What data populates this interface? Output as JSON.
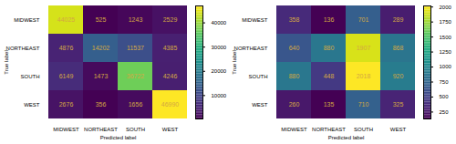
{
  "chart_data": [
    {
      "type": "heatmap",
      "categories": [
        "MIDWEST",
        "NORTHEAST",
        "SOUTH",
        "WEST"
      ],
      "values": [
        [
          44025,
          525,
          1243,
          2529
        ],
        [
          4876,
          14202,
          11537,
          4385
        ],
        [
          6149,
          1473,
          36722,
          4246
        ],
        [
          2676,
          356,
          1656,
          46990
        ]
      ],
      "xlabel": "Predicted label",
      "ylabel": "True label",
      "color": "viridis",
      "text_color": "#d4a843",
      "data_labels": true,
      "colorbar_range": [
        356,
        46990
      ],
      "colorbar_ticks": [
        10000,
        20000,
        30000,
        40000
      ]
    },
    {
      "type": "heatmap",
      "categories": [
        "MIDWEST",
        "NORTHEAST",
        "SOUTH",
        "WEST"
      ],
      "values": [
        [
          358,
          136,
          701,
          289
        ],
        [
          640,
          880,
          1907,
          868
        ],
        [
          880,
          448,
          2018,
          920
        ],
        [
          260,
          135,
          710,
          325
        ]
      ],
      "xlabel": "Predicted label",
      "ylabel": "True label",
      "color": "viridis",
      "text_color": "#d4a843",
      "data_labels": true,
      "colorbar_range": [
        135,
        2018
      ],
      "colorbar_ticks": [
        250,
        500,
        750,
        1000,
        1250,
        1500,
        1750,
        2000
      ]
    }
  ]
}
